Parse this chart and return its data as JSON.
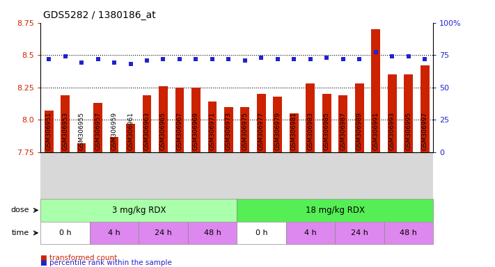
{
  "title": "GDS5282 / 1380186_at",
  "samples": [
    "GSM306951",
    "GSM306953",
    "GSM306955",
    "GSM306957",
    "GSM306959",
    "GSM306961",
    "GSM306963",
    "GSM306965",
    "GSM306967",
    "GSM306969",
    "GSM306971",
    "GSM306973",
    "GSM306975",
    "GSM306977",
    "GSM306979",
    "GSM306981",
    "GSM306983",
    "GSM306985",
    "GSM306987",
    "GSM306989",
    "GSM306991",
    "GSM306993",
    "GSM306995",
    "GSM306997"
  ],
  "bar_values": [
    8.07,
    8.19,
    7.82,
    8.13,
    7.87,
    7.97,
    8.19,
    8.26,
    8.25,
    8.25,
    8.14,
    8.1,
    8.1,
    8.2,
    8.18,
    8.05,
    8.28,
    8.2,
    8.19,
    8.28,
    8.7,
    8.35,
    8.35,
    8.42
  ],
  "percentile_values": [
    8.47,
    8.49,
    8.44,
    8.47,
    8.44,
    8.43,
    8.46,
    8.47,
    8.47,
    8.47,
    8.47,
    8.47,
    8.46,
    8.48,
    8.47,
    8.47,
    8.47,
    8.48,
    8.47,
    8.47,
    8.52,
    8.49,
    8.49,
    8.47
  ],
  "ylim": [
    7.75,
    8.75
  ],
  "y_left_ticks": [
    7.75,
    8.0,
    8.25,
    8.5,
    8.75
  ],
  "y_right_ticks_pct": [
    0,
    25,
    50,
    75,
    100
  ],
  "bar_color": "#cc2200",
  "dot_color": "#2222cc",
  "dose_groups": [
    {
      "label": "3 mg/kg RDX",
      "start": 0,
      "end": 12,
      "color": "#aaffaa"
    },
    {
      "label": "18 mg/kg RDX",
      "start": 12,
      "end": 24,
      "color": "#55ee55"
    }
  ],
  "time_groups": [
    {
      "label": "0 h",
      "start": 0,
      "end": 3,
      "bg": "white"
    },
    {
      "label": "4 h",
      "start": 3,
      "end": 6,
      "bg": "violet"
    },
    {
      "label": "24 h",
      "start": 6,
      "end": 9,
      "bg": "violet"
    },
    {
      "label": "48 h",
      "start": 9,
      "end": 12,
      "bg": "violet"
    },
    {
      "label": "0 h",
      "start": 12,
      "end": 15,
      "bg": "white"
    },
    {
      "label": "4 h",
      "start": 15,
      "end": 18,
      "bg": "violet"
    },
    {
      "label": "24 h",
      "start": 18,
      "end": 21,
      "bg": "violet"
    },
    {
      "label": "48 h",
      "start": 21,
      "end": 24,
      "bg": "violet"
    }
  ],
  "time_white_color": "#ffffff",
  "time_violet_color": "#dd88ee",
  "xtick_bg_color": "#d8d8d8",
  "legend_items": [
    {
      "label": "transformed count",
      "color": "#cc2200"
    },
    {
      "label": "percentile rank within the sample",
      "color": "#2222cc"
    }
  ]
}
